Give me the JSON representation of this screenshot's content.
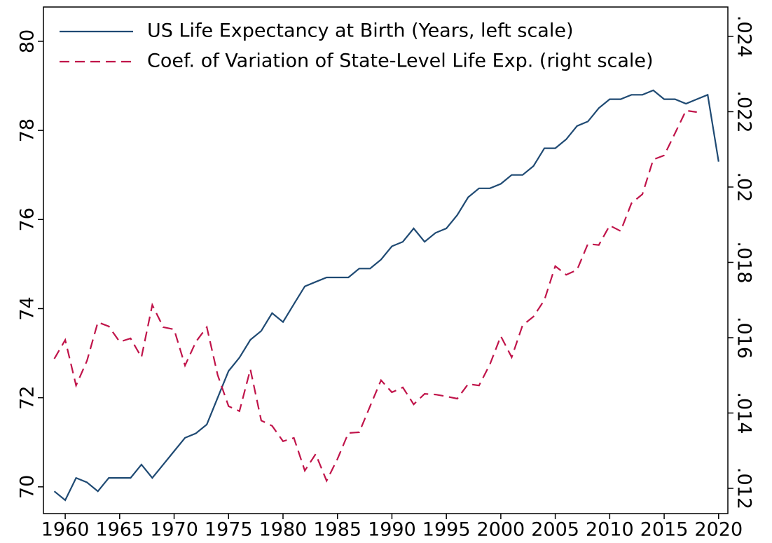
{
  "chart_data": {
    "type": "line",
    "x": [
      1959,
      1960,
      1961,
      1962,
      1963,
      1964,
      1965,
      1966,
      1967,
      1968,
      1969,
      1970,
      1971,
      1972,
      1973,
      1974,
      1975,
      1976,
      1977,
      1978,
      1979,
      1980,
      1981,
      1982,
      1983,
      1984,
      1985,
      1986,
      1987,
      1988,
      1989,
      1990,
      1991,
      1992,
      1993,
      1994,
      1995,
      1996,
      1997,
      1998,
      1999,
      2000,
      2001,
      2002,
      2003,
      2004,
      2005,
      2006,
      2007,
      2008,
      2009,
      2010,
      2011,
      2012,
      2013,
      2014,
      2015,
      2016,
      2017,
      2018,
      2019,
      2020
    ],
    "series": [
      {
        "name": "US Life Expectancy at Birth (Years, left scale)",
        "color": "#1f4a73",
        "dash": false,
        "values": [
          69.9,
          69.7,
          70.2,
          70.1,
          69.9,
          70.2,
          70.2,
          70.2,
          70.5,
          70.2,
          70.5,
          70.8,
          71.1,
          71.2,
          71.4,
          72.0,
          72.6,
          72.9,
          73.3,
          73.5,
          73.9,
          73.7,
          74.1,
          74.5,
          74.6,
          74.7,
          74.7,
          74.7,
          74.9,
          74.9,
          75.1,
          75.4,
          75.5,
          75.8,
          75.5,
          75.7,
          75.8,
          76.1,
          76.5,
          76.7,
          76.7,
          76.8,
          77.0,
          77.0,
          77.2,
          77.6,
          77.6,
          77.8,
          78.1,
          78.2,
          78.5,
          78.7,
          78.7,
          78.8,
          78.8,
          78.9,
          78.7,
          78.7,
          78.6,
          78.7,
          78.8,
          77.3
        ]
      },
      {
        "name": "Coef. of Variation of State-Level Life Exp. (right scale)",
        "color": "#c0144a",
        "dash": true,
        "axis": "y2",
        "values": [
          0.01544,
          0.01594,
          0.01473,
          0.01539,
          0.01641,
          0.0163,
          0.01589,
          0.01598,
          0.01548,
          0.01687,
          0.01628,
          0.01622,
          0.01526,
          0.01589,
          0.01628,
          0.01501,
          0.01418,
          0.01405,
          0.01516,
          0.0138,
          0.01366,
          0.01325,
          0.01334,
          0.01247,
          0.01291,
          0.0122,
          0.01278,
          0.01347,
          0.01349,
          0.01418,
          0.01487,
          0.01455,
          0.01468,
          0.01423,
          0.01451,
          0.01449,
          0.01444,
          0.01438,
          0.01477,
          0.01473,
          0.01529,
          0.01604,
          0.01548,
          0.01633,
          0.01656,
          0.017,
          0.0179,
          0.01767,
          0.0178,
          0.01849,
          0.01846,
          0.01898,
          0.01883,
          0.01957,
          0.01981,
          0.02073,
          0.02084,
          0.02143,
          0.02203,
          0.02199,
          null,
          null
        ]
      }
    ],
    "xlim": [
      1958,
      2020.85
    ],
    "xticks": [
      1960,
      1965,
      1970,
      1975,
      1980,
      1985,
      1990,
      1995,
      2000,
      2005,
      2010,
      2015,
      2020
    ],
    "ylim": [
      69.4,
      80.77
    ],
    "yticks": [
      70,
      72,
      74,
      76,
      78,
      80
    ],
    "y2lim": [
      0.01133,
      0.02478
    ],
    "y2ticks": [
      {
        "value": 0.012,
        "label": ".012"
      },
      {
        "value": 0.014,
        "label": ".014"
      },
      {
        "value": 0.016,
        "label": ".016"
      },
      {
        "value": 0.018,
        "label": ".018"
      },
      {
        "value": 0.02,
        "label": ".02"
      },
      {
        "value": 0.022,
        "label": ".022"
      },
      {
        "value": 0.024,
        "label": ".024"
      }
    ],
    "legend": "top-left"
  }
}
